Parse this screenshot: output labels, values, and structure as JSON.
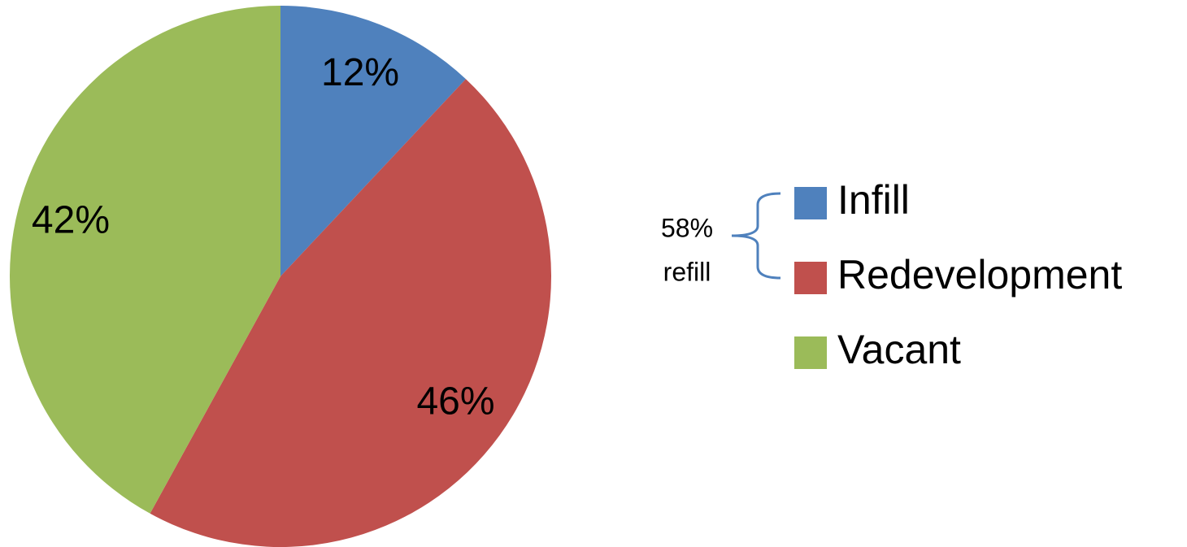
{
  "chart_data": {
    "type": "pie",
    "categories": [
      "Infill",
      "Redevelopment",
      "Vacant"
    ],
    "values": [
      12,
      46,
      42
    ],
    "value_labels": [
      "12%",
      "46%",
      "42%"
    ],
    "colors": [
      "#4f81bd",
      "#c0504d",
      "#9bbb59"
    ],
    "legend": "right",
    "annotations": [
      "58%",
      "refill"
    ]
  }
}
